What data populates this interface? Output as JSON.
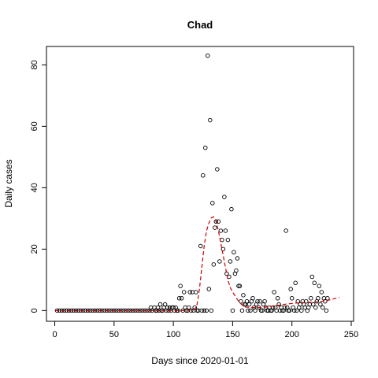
{
  "chart_data": {
    "type": "scatter",
    "title": "Chad",
    "xlabel": "Days since 2020-01-01",
    "ylabel": "Daily cases",
    "xlim": [
      -7,
      252
    ],
    "ylim": [
      -3.5,
      86
    ],
    "xticks": [
      0,
      50,
      100,
      150,
      200,
      250
    ],
    "yticks": [
      0,
      20,
      40,
      60,
      80
    ],
    "grid": false,
    "legend": "none",
    "point_color": "#000000",
    "trend_color": "#cc0000",
    "points": [
      [
        2,
        0
      ],
      [
        4,
        0
      ],
      [
        6,
        0
      ],
      [
        8,
        0
      ],
      [
        10,
        0
      ],
      [
        12,
        0
      ],
      [
        14,
        0
      ],
      [
        16,
        0
      ],
      [
        18,
        0
      ],
      [
        20,
        0
      ],
      [
        22,
        0
      ],
      [
        24,
        0
      ],
      [
        26,
        0
      ],
      [
        28,
        0
      ],
      [
        30,
        0
      ],
      [
        32,
        0
      ],
      [
        34,
        0
      ],
      [
        36,
        0
      ],
      [
        38,
        0
      ],
      [
        40,
        0
      ],
      [
        42,
        0
      ],
      [
        44,
        0
      ],
      [
        46,
        0
      ],
      [
        48,
        0
      ],
      [
        50,
        0
      ],
      [
        52,
        0
      ],
      [
        54,
        0
      ],
      [
        56,
        0
      ],
      [
        58,
        0
      ],
      [
        60,
        0
      ],
      [
        62,
        0
      ],
      [
        64,
        0
      ],
      [
        66,
        0
      ],
      [
        68,
        0
      ],
      [
        70,
        0
      ],
      [
        72,
        0
      ],
      [
        74,
        0
      ],
      [
        76,
        0
      ],
      [
        78,
        0
      ],
      [
        80,
        0
      ],
      [
        81,
        1
      ],
      [
        82,
        0
      ],
      [
        84,
        1
      ],
      [
        85,
        0
      ],
      [
        86,
        0
      ],
      [
        87,
        1
      ],
      [
        88,
        0
      ],
      [
        89,
        2
      ],
      [
        90,
        0
      ],
      [
        91,
        0
      ],
      [
        92,
        1
      ],
      [
        93,
        2
      ],
      [
        94,
        0
      ],
      [
        95,
        1
      ],
      [
        96,
        0
      ],
      [
        97,
        1
      ],
      [
        98,
        0
      ],
      [
        99,
        1
      ],
      [
        100,
        1
      ],
      [
        101,
        0
      ],
      [
        102,
        1
      ],
      [
        103,
        0
      ],
      [
        104,
        0
      ],
      [
        105,
        4
      ],
      [
        106,
        8
      ],
      [
        107,
        4
      ],
      [
        108,
        0
      ],
      [
        109,
        6
      ],
      [
        110,
        1
      ],
      [
        111,
        0
      ],
      [
        112,
        0
      ],
      [
        113,
        1
      ],
      [
        114,
        6
      ],
      [
        115,
        0
      ],
      [
        116,
        6
      ],
      [
        117,
        0
      ],
      [
        118,
        1
      ],
      [
        119,
        6
      ],
      [
        120,
        0
      ],
      [
        121,
        0
      ],
      [
        123,
        21
      ],
      [
        124,
        0
      ],
      [
        125,
        44
      ],
      [
        126,
        0
      ],
      [
        127,
        53
      ],
      [
        128,
        0
      ],
      [
        129,
        83
      ],
      [
        130,
        7
      ],
      [
        131,
        62
      ],
      [
        132,
        0
      ],
      [
        133,
        35
      ],
      [
        134,
        15
      ],
      [
        135,
        27
      ],
      [
        136,
        29
      ],
      [
        137,
        46
      ],
      [
        138,
        29
      ],
      [
        139,
        16
      ],
      [
        140,
        26
      ],
      [
        141,
        23
      ],
      [
        142,
        20
      ],
      [
        143,
        37
      ],
      [
        144,
        26
      ],
      [
        145,
        12
      ],
      [
        146,
        23
      ],
      [
        147,
        11
      ],
      [
        148,
        16
      ],
      [
        149,
        33
      ],
      [
        150,
        0
      ],
      [
        151,
        19
      ],
      [
        152,
        12
      ],
      [
        153,
        13
      ],
      [
        154,
        17
      ],
      [
        155,
        8
      ],
      [
        156,
        8
      ],
      [
        157,
        3
      ],
      [
        158,
        0
      ],
      [
        159,
        5
      ],
      [
        160,
        2
      ],
      [
        161,
        2
      ],
      [
        162,
        3
      ],
      [
        163,
        0
      ],
      [
        164,
        2
      ],
      [
        165,
        0
      ],
      [
        166,
        3
      ],
      [
        167,
        4
      ],
      [
        168,
        1
      ],
      [
        169,
        0
      ],
      [
        170,
        2
      ],
      [
        171,
        3
      ],
      [
        172,
        1
      ],
      [
        173,
        3
      ],
      [
        174,
        0
      ],
      [
        175,
        0
      ],
      [
        176,
        2
      ],
      [
        177,
        3
      ],
      [
        178,
        1
      ],
      [
        179,
        0
      ],
      [
        180,
        0
      ],
      [
        181,
        1
      ],
      [
        182,
        0
      ],
      [
        183,
        0
      ],
      [
        184,
        1
      ],
      [
        185,
        6
      ],
      [
        186,
        1
      ],
      [
        187,
        0
      ],
      [
        188,
        4
      ],
      [
        189,
        2
      ],
      [
        190,
        0
      ],
      [
        191,
        1
      ],
      [
        192,
        0
      ],
      [
        193,
        0
      ],
      [
        194,
        1
      ],
      [
        195,
        26
      ],
      [
        196,
        1
      ],
      [
        197,
        0
      ],
      [
        198,
        0
      ],
      [
        199,
        7
      ],
      [
        200,
        4
      ],
      [
        201,
        1
      ],
      [
        202,
        0
      ],
      [
        203,
        9
      ],
      [
        204,
        0
      ],
      [
        205,
        3
      ],
      [
        206,
        1
      ],
      [
        207,
        2
      ],
      [
        208,
        0
      ],
      [
        209,
        3
      ],
      [
        210,
        2
      ],
      [
        211,
        1
      ],
      [
        212,
        3
      ],
      [
        213,
        0
      ],
      [
        214,
        1
      ],
      [
        215,
        2
      ],
      [
        216,
        4
      ],
      [
        217,
        11
      ],
      [
        218,
        2
      ],
      [
        219,
        9
      ],
      [
        220,
        1
      ],
      [
        221,
        3
      ],
      [
        222,
        4
      ],
      [
        223,
        8
      ],
      [
        224,
        2
      ],
      [
        225,
        6
      ],
      [
        226,
        1
      ],
      [
        227,
        4
      ],
      [
        228,
        3
      ],
      [
        229,
        0
      ],
      [
        230,
        4
      ]
    ],
    "trend": [
      [
        0,
        0
      ],
      [
        20,
        0
      ],
      [
        40,
        0
      ],
      [
        60,
        0
      ],
      [
        80,
        0
      ],
      [
        100,
        0
      ],
      [
        110,
        0
      ],
      [
        118,
        0.3
      ],
      [
        120,
        2
      ],
      [
        122,
        7
      ],
      [
        124,
        14
      ],
      [
        126,
        21
      ],
      [
        128,
        26
      ],
      [
        130,
        28.5
      ],
      [
        132,
        30.2
      ],
      [
        134,
        30.5
      ],
      [
        136,
        29
      ],
      [
        138,
        26
      ],
      [
        140,
        22
      ],
      [
        142,
        18
      ],
      [
        144,
        14
      ],
      [
        146,
        10
      ],
      [
        148,
        7.5
      ],
      [
        150,
        6
      ],
      [
        152,
        4.8
      ],
      [
        154,
        3.6
      ],
      [
        156,
        2.6
      ],
      [
        158,
        1.8
      ],
      [
        160,
        1.2
      ],
      [
        165,
        1
      ],
      [
        170,
        0.9
      ],
      [
        175,
        1
      ],
      [
        180,
        1.2
      ],
      [
        185,
        1.5
      ],
      [
        190,
        1.8
      ],
      [
        195,
        2.1
      ],
      [
        200,
        2.3
      ],
      [
        205,
        2.5
      ],
      [
        210,
        2.6
      ],
      [
        215,
        2.7
      ],
      [
        220,
        2.8
      ],
      [
        225,
        3
      ],
      [
        230,
        3.3
      ],
      [
        235,
        3.8
      ],
      [
        240,
        4.3
      ]
    ]
  }
}
